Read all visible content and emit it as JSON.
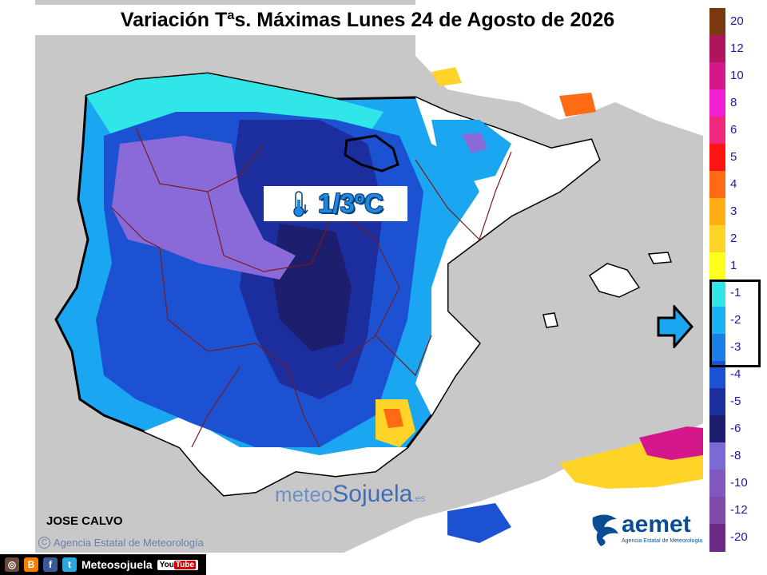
{
  "title": "Variación Tªs. Máximas Lunes 24 de Agosto de 2026",
  "temp_label": {
    "value": "1/3ºC",
    "icon": "thermometer-down-icon"
  },
  "author": "JOSE CALVO",
  "agency": "Agencia Estatal de Meteorología",
  "watermark": {
    "part1": "meteo",
    "part2": "Sojuela",
    "tld": ".es"
  },
  "aemet": {
    "name": "aemet",
    "subtitle": "Agencia Estatal de Meteorología"
  },
  "social": {
    "handle": "Meteosojuela",
    "youtube": "You",
    "youtube2": "Tube"
  },
  "legend": [
    {
      "label": "20",
      "color": "#7a3810"
    },
    {
      "label": "12",
      "color": "#b0145a"
    },
    {
      "label": "10",
      "color": "#d4188c"
    },
    {
      "label": "8",
      "color": "#f020d2"
    },
    {
      "label": "6",
      "color": "#f0287c"
    },
    {
      "label": "5",
      "color": "#ff1414"
    },
    {
      "label": "4",
      "color": "#ff6a14"
    },
    {
      "label": "3",
      "color": "#ffae14"
    },
    {
      "label": "2",
      "color": "#ffd428"
    },
    {
      "label": "1",
      "color": "#ffff1e"
    },
    {
      "label": "-1",
      "color": "#30e6e8"
    },
    {
      "label": "-2",
      "color": "#16b4f4"
    },
    {
      "label": "-3",
      "color": "#1a7ee8"
    },
    {
      "label": "-4",
      "color": "#1c52d2"
    },
    {
      "label": "-5",
      "color": "#1c2d9e"
    },
    {
      "label": "-6",
      "color": "#1e1e6e"
    },
    {
      "label": "-8",
      "color": "#7a6ad6"
    },
    {
      "label": "-10",
      "color": "#8058c0"
    },
    {
      "label": "-12",
      "color": "#7e4aa6"
    },
    {
      "label": "-20",
      "color": "#6a2a86"
    }
  ],
  "colors": {
    "sea": "#c8c8c8",
    "land": "#ffffff",
    "border": "#7a1a1a"
  }
}
